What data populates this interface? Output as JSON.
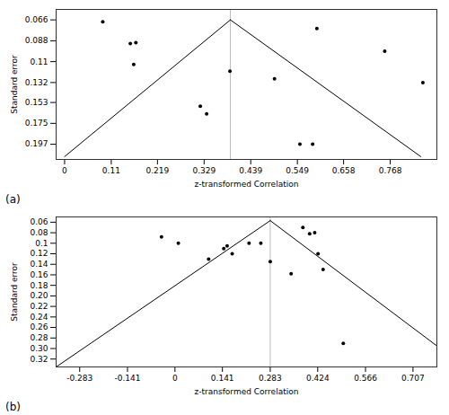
{
  "chart_data": [
    {
      "type": "scatter",
      "x_label": "z-transformed Correlation",
      "y_label": "Standard error",
      "annotation": "(a)",
      "xlim": [
        -0.02,
        0.878
      ],
      "ylim": [
        0.213,
        0.055
      ],
      "xticks": [
        0,
        0.11,
        0.219,
        0.329,
        0.439,
        0.549,
        0.658,
        0.768
      ],
      "yticks": [
        0.066,
        0.088,
        0.11,
        0.132,
        0.153,
        0.175,
        0.197
      ],
      "vline": {
        "x": 0.391,
        "color": "#aaaaaa"
      },
      "series": [
        {
          "type": "scatter",
          "color": "#000000",
          "x": [
            0.09,
            0.155,
            0.168,
            0.163,
            0.32,
            0.335,
            0.39,
            0.495,
            0.555,
            0.585,
            0.595,
            0.755,
            0.845
          ],
          "values": [
            0.068,
            0.091,
            0.09,
            0.113,
            0.157,
            0.165,
            0.12,
            0.128,
            0.197,
            0.197,
            0.075,
            0.099,
            0.132
          ]
        },
        {
          "type": "line",
          "color": "#000000",
          "x": [
            0.0,
            0.391
          ],
          "values": [
            0.21,
            0.066
          ]
        },
        {
          "type": "line",
          "color": "#000000",
          "x": [
            0.391,
            0.84
          ],
          "values": [
            0.066,
            0.21
          ]
        }
      ]
    },
    {
      "type": "scatter",
      "x_label": "z-transformed Correlation",
      "y_label": "Standard error",
      "annotation": "(b)",
      "xlim": [
        -0.353,
        0.778
      ],
      "ylim": [
        0.335,
        0.05
      ],
      "xticks": [
        -0.283,
        -0.141,
        0,
        0.141,
        0.283,
        0.424,
        0.566,
        0.707
      ],
      "yticks": [
        0.06,
        0.08,
        0.1,
        0.12,
        0.14,
        0.16,
        0.18,
        {
          "value": 0.2,
          "label": "0.20"
        },
        0.22,
        0.24,
        0.26,
        0.28,
        {
          "value": 0.3,
          "label": "0.30"
        },
        0.32
      ],
      "vline": {
        "x": 0.283,
        "color": "#aaaaaa"
      },
      "series": [
        {
          "type": "scatter",
          "color": "#000000",
          "x": [
            -0.04,
            0.01,
            0.1,
            0.145,
            0.155,
            0.17,
            0.22,
            0.255,
            0.283,
            0.345,
            0.38,
            0.4,
            0.415,
            0.425,
            0.44,
            0.5
          ],
          "values": [
            0.088,
            0.1,
            0.13,
            0.11,
            0.105,
            0.12,
            0.1,
            0.1,
            0.135,
            0.158,
            0.07,
            0.082,
            0.08,
            0.12,
            0.15,
            0.29
          ]
        },
        {
          "type": "line",
          "color": "#000000",
          "x": [
            -0.353,
            0.283
          ],
          "values": [
            0.335,
            0.057
          ]
        },
        {
          "type": "line",
          "color": "#000000",
          "x": [
            0.283,
            0.778
          ],
          "values": [
            0.057,
            0.295
          ]
        }
      ]
    }
  ]
}
